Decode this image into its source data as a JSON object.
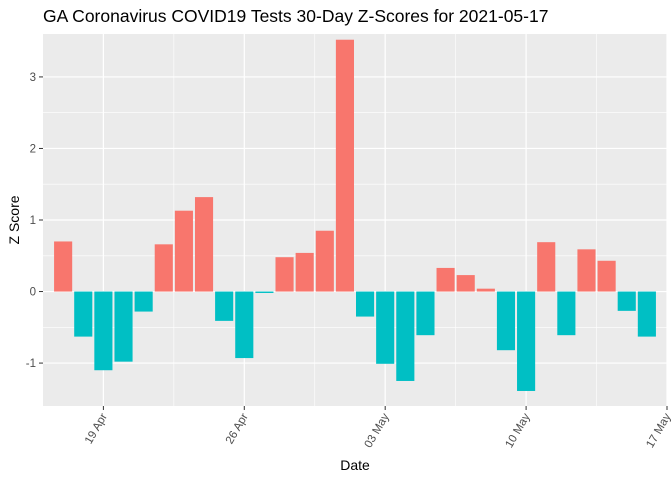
{
  "chart_data": {
    "type": "bar",
    "title": "GA Coronavirus COVID19 Tests 30-Day Z-Scores for 2021-05-17",
    "xlabel": "Date",
    "ylabel": "Z Score",
    "x_tick_labels": [
      "19 Apr",
      "26 Apr",
      "03 May",
      "10 May",
      "17 May"
    ],
    "x_tick_dates": [
      "2021-04-19",
      "2021-04-26",
      "2021-05-03",
      "2021-05-10",
      "2021-05-17"
    ],
    "x_range": [
      "2021-04-16",
      "2021-05-17"
    ],
    "y_ticks": [
      -1,
      0,
      1,
      2,
      3
    ],
    "ylim": [
      -1.6,
      3.6
    ],
    "grid": true,
    "legend": "none",
    "colors": {
      "positive": "#F8766D",
      "negative": "#00BFC4",
      "panel": "#EBEBEB",
      "grid": "#FFFFFF"
    },
    "dates": [
      "2021-04-17",
      "2021-04-18",
      "2021-04-19",
      "2021-04-20",
      "2021-04-21",
      "2021-04-22",
      "2021-04-23",
      "2021-04-24",
      "2021-04-25",
      "2021-04-26",
      "2021-04-27",
      "2021-04-28",
      "2021-04-29",
      "2021-04-30",
      "2021-05-01",
      "2021-05-02",
      "2021-05-03",
      "2021-05-04",
      "2021-05-05",
      "2021-05-06",
      "2021-05-07",
      "2021-05-08",
      "2021-05-09",
      "2021-05-10",
      "2021-05-11",
      "2021-05-12",
      "2021-05-13",
      "2021-05-14",
      "2021-05-15",
      "2021-05-16"
    ],
    "values": [
      0.7,
      -0.63,
      -1.1,
      -0.98,
      -0.28,
      0.66,
      1.13,
      1.32,
      -0.41,
      -0.93,
      -0.02,
      0.48,
      0.54,
      0.85,
      3.52,
      -0.35,
      -1.01,
      -1.25,
      -0.61,
      0.33,
      0.23,
      0.04,
      -0.82,
      -1.39,
      0.69,
      -0.61,
      0.59,
      0.43,
      -0.27,
      -0.63
    ]
  }
}
